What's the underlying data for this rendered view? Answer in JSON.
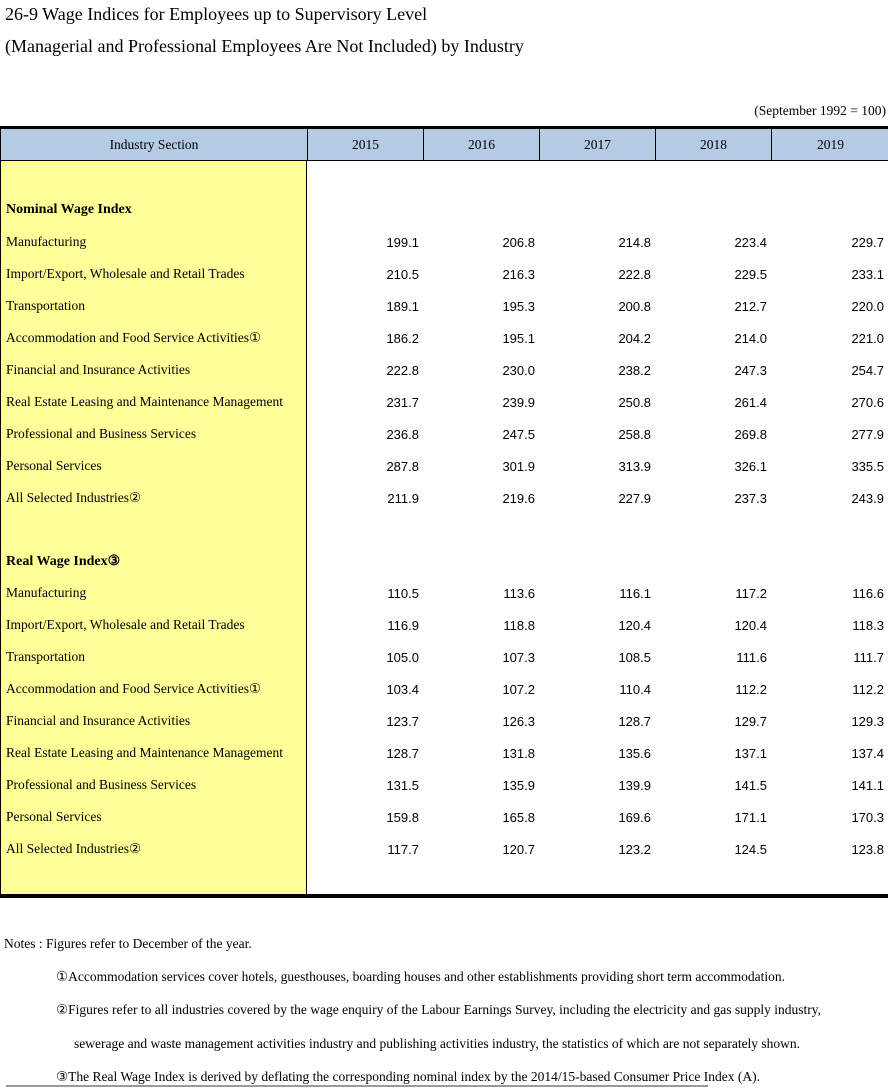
{
  "page": {
    "title_line1": "26-9 Wage Indices for Employees up to Supervisory Level",
    "title_line2": "(Managerial and Professional Employees Are Not Included) by Industry",
    "base_note": "(September 1992 = 100)"
  },
  "table": {
    "colors": {
      "header_bg": "#B3CCE4",
      "label_column_bg": "#FFFF99",
      "border": "#000000"
    },
    "header": {
      "industry_label": "Industry Section",
      "years": [
        "2015",
        "2016",
        "2017",
        "2018",
        "2019"
      ]
    },
    "sections": [
      {
        "heading": "Nominal Wage Index",
        "rows": [
          {
            "label": "Manufacturing",
            "values": [
              "199.1",
              "206.8",
              "214.8",
              "223.4",
              "229.7"
            ]
          },
          {
            "label": "Import/Export, Wholesale and Retail Trades",
            "values": [
              "210.5",
              "216.3",
              "222.8",
              "229.5",
              "233.1"
            ]
          },
          {
            "label": "Transportation",
            "values": [
              "189.1",
              "195.3",
              "200.8",
              "212.7",
              "220.0"
            ]
          },
          {
            "label": "Accommodation and Food Service Activities①",
            "values": [
              "186.2",
              "195.1",
              "204.2",
              "214.0",
              "221.0"
            ]
          },
          {
            "label": "Financial and Insurance Activities",
            "values": [
              "222.8",
              "230.0",
              "238.2",
              "247.3",
              "254.7"
            ]
          },
          {
            "label": "Real Estate Leasing and Maintenance Management",
            "values": [
              "231.7",
              "239.9",
              "250.8",
              "261.4",
              "270.6"
            ]
          },
          {
            "label": "Professional and Business Services",
            "values": [
              "236.8",
              "247.5",
              "258.8",
              "269.8",
              "277.9"
            ]
          },
          {
            "label": "Personal Services",
            "values": [
              "287.8",
              "301.9",
              "313.9",
              "326.1",
              "335.5"
            ]
          },
          {
            "label": "All Selected Industries②",
            "values": [
              "211.9",
              "219.6",
              "227.9",
              "237.3",
              "243.9"
            ]
          }
        ]
      },
      {
        "heading": "Real Wage Index③",
        "rows": [
          {
            "label": "Manufacturing",
            "values": [
              "110.5",
              "113.6",
              "116.1",
              "117.2",
              "116.6"
            ]
          },
          {
            "label": "Import/Export, Wholesale and Retail Trades",
            "values": [
              "116.9",
              "118.8",
              "120.4",
              "120.4",
              "118.3"
            ]
          },
          {
            "label": "Transportation",
            "values": [
              "105.0",
              "107.3",
              "108.5",
              "111.6",
              "111.7"
            ]
          },
          {
            "label": "Accommodation and Food Service Activities①",
            "values": [
              "103.4",
              "107.2",
              "110.4",
              "112.2",
              "112.2"
            ]
          },
          {
            "label": "Financial and Insurance Activities",
            "values": [
              "123.7",
              "126.3",
              "128.7",
              "129.7",
              "129.3"
            ]
          },
          {
            "label": "Real Estate Leasing and Maintenance Management",
            "values": [
              "128.7",
              "131.8",
              "135.6",
              "137.1",
              "137.4"
            ]
          },
          {
            "label": "Professional and Business Services",
            "values": [
              "131.5",
              "135.9",
              "139.9",
              "141.5",
              "141.1"
            ]
          },
          {
            "label": "Personal Services",
            "values": [
              "159.8",
              "165.8",
              "169.6",
              "171.1",
              "170.3"
            ]
          },
          {
            "label": "All Selected Industries②",
            "values": [
              "117.7",
              "120.7",
              "123.2",
              "124.5",
              "123.8"
            ]
          }
        ]
      }
    ]
  },
  "notes": {
    "intro": "Notes : Figures refer to December of the year.",
    "note1": "①Accommodation services cover hotels, guesthouses, boarding houses and other establishments providing short term accommodation.",
    "note2_line1": "②Figures refer to all industries covered by the wage enquiry of the Labour Earnings Survey, including the electricity and gas supply industry,",
    "note2_line2": "sewerage and waste management activities industry and publishing activities industry, the statistics of which are not separately shown.",
    "note3": "③The Real Wage Index is derived by deflating the corresponding nominal index by the 2014/15-based Consumer Price Index (A)."
  }
}
